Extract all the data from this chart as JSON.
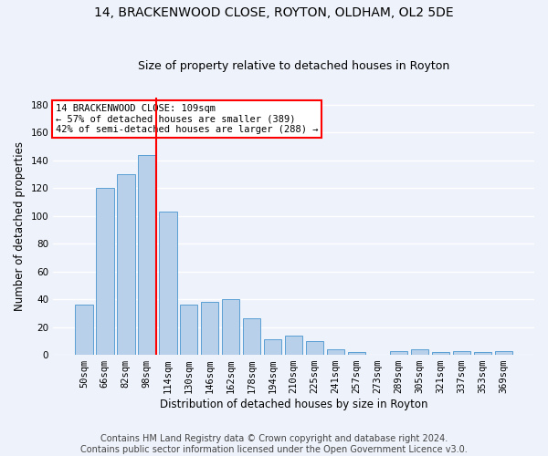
{
  "title_line1": "14, BRACKENWOOD CLOSE, ROYTON, OLDHAM, OL2 5DE",
  "title_line2": "Size of property relative to detached houses in Royton",
  "xlabel": "Distribution of detached houses by size in Royton",
  "ylabel": "Number of detached properties",
  "bar_labels": [
    "50sqm",
    "66sqm",
    "82sqm",
    "98sqm",
    "114sqm",
    "130sqm",
    "146sqm",
    "162sqm",
    "178sqm",
    "194sqm",
    "210sqm",
    "225sqm",
    "241sqm",
    "257sqm",
    "273sqm",
    "289sqm",
    "305sqm",
    "321sqm",
    "337sqm",
    "353sqm",
    "369sqm"
  ],
  "bar_values": [
    36,
    120,
    130,
    144,
    103,
    36,
    38,
    40,
    26,
    11,
    14,
    10,
    4,
    2,
    0,
    3,
    4,
    2,
    3,
    2,
    3
  ],
  "bar_color": "#b8d0ea",
  "bar_edge_color": "#5a9fd4",
  "vline_color": "red",
  "vline_x_index": 3,
  "annotation_text": "14 BRACKENWOOD CLOSE: 109sqm\n← 57% of detached houses are smaller (389)\n42% of semi-detached houses are larger (288) →",
  "annotation_box_color": "white",
  "annotation_box_edge": "red",
  "ylim": [
    0,
    185
  ],
  "yticks": [
    0,
    20,
    40,
    60,
    80,
    100,
    120,
    140,
    160,
    180
  ],
  "background_color": "#eef2fa",
  "grid_color": "white",
  "footer": "Contains HM Land Registry data © Crown copyright and database right 2024.\nContains public sector information licensed under the Open Government Licence v3.0.",
  "footer_fontsize": 7,
  "title1_fontsize": 10,
  "title2_fontsize": 9,
  "xlabel_fontsize": 8.5,
  "ylabel_fontsize": 8.5,
  "tick_fontsize": 7.5
}
